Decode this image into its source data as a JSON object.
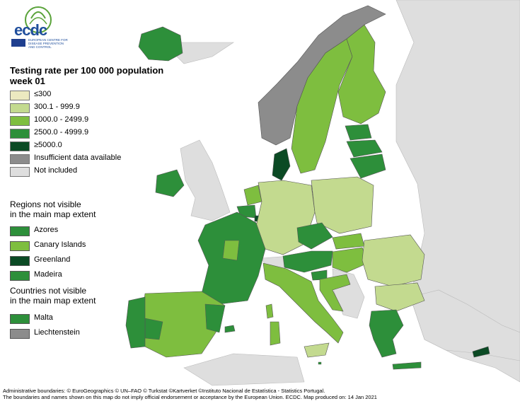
{
  "logo": {
    "text": "ecdc",
    "subtitle": "EUROPEAN CENTRE FOR DISEASE PREVENTION AND CONTROL"
  },
  "title": {
    "line1": "Testing rate per 100 000 population",
    "line2": "week 01"
  },
  "legend": [
    {
      "label": "≤300",
      "color": "#ece9c0"
    },
    {
      "label": "300.1 - 999.9",
      "color": "#c3da8f"
    },
    {
      "label": "1000.0 - 2499.9",
      "color": "#7ebe3f"
    },
    {
      "label": "2500.0 - 4999.9",
      "color": "#2d8f3a"
    },
    {
      "label": "≥5000.0",
      "color": "#0b4a24"
    },
    {
      "label": "Insufficient data available",
      "color": "#8c8c8c"
    },
    {
      "label": "Not included",
      "color": "#dedede"
    }
  ],
  "regions_heading": {
    "line1": "Regions not visible",
    "line2": "in the main map extent"
  },
  "regions": [
    {
      "label": "Azores",
      "color": "#2d8f3a"
    },
    {
      "label": "Canary Islands",
      "color": "#7ebe3f"
    },
    {
      "label": "Greenland",
      "color": "#0b4a24"
    },
    {
      "label": "Madeira",
      "color": "#2d8f3a"
    }
  ],
  "countries_heading": {
    "line1": "Countries not visible",
    "line2": "in the main map extent"
  },
  "countries": [
    {
      "label": "Malta",
      "color": "#2d8f3a"
    },
    {
      "label": "Liechtenstein",
      "color": "#8c8c8c"
    }
  ],
  "footer": {
    "line1": "Administrative boundaries: © EuroGeographics © UN–FAO © Turkstat ©Kartverket ©Instituto Nacional de Estatística - Statistics Portugal.",
    "line2": "The boundaries and names shown on this map do not imply official endorsement or acceptance by the European Union. ECDC. Map produced on: 14 Jan 2021"
  },
  "colors": {
    "sea": "#ffffff",
    "not_included": "#dedede",
    "border": "#555555"
  }
}
